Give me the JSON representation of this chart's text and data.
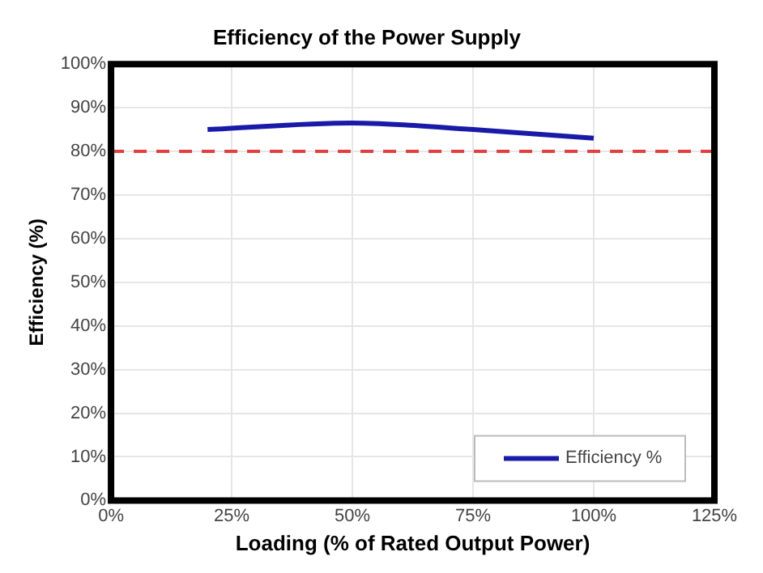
{
  "chart_data": {
    "type": "line",
    "title": "Efficiency of the Power Supply",
    "xlabel": "Loading (% of Rated Output Power)",
    "ylabel": "Efficiency (%)",
    "x": [
      20,
      50,
      75,
      100
    ],
    "series": [
      {
        "name": "Efficiency %",
        "color": "#1a1aa8",
        "values": [
          85,
          86.5,
          85,
          83
        ]
      }
    ],
    "xlim": [
      0,
      125
    ],
    "xticks": [
      {
        "value": 0,
        "label": "0%"
      },
      {
        "value": 25,
        "label": "25%"
      },
      {
        "value": 50,
        "label": "50%"
      },
      {
        "value": 75,
        "label": "75%"
      },
      {
        "value": 100,
        "label": "100%"
      },
      {
        "value": 125,
        "label": "125%"
      }
    ],
    "ylim": [
      0,
      100
    ],
    "yticks": [
      {
        "value": 0,
        "label": "0%"
      },
      {
        "value": 10,
        "label": "10%"
      },
      {
        "value": 20,
        "label": "20%"
      },
      {
        "value": 30,
        "label": "30%"
      },
      {
        "value": 40,
        "label": "40%"
      },
      {
        "value": 50,
        "label": "50%"
      },
      {
        "value": 60,
        "label": "60%"
      },
      {
        "value": 70,
        "label": "70%"
      },
      {
        "value": 80,
        "label": "80%"
      },
      {
        "value": 90,
        "label": "90%"
      },
      {
        "value": 100,
        "label": "100%"
      }
    ],
    "ref_lines": [
      {
        "axis": "y",
        "value": 80,
        "color": "#e04040",
        "line_style": "dashed"
      }
    ],
    "grid": true,
    "legend": "bottom right",
    "marker": "none",
    "line_style": "solid"
  }
}
